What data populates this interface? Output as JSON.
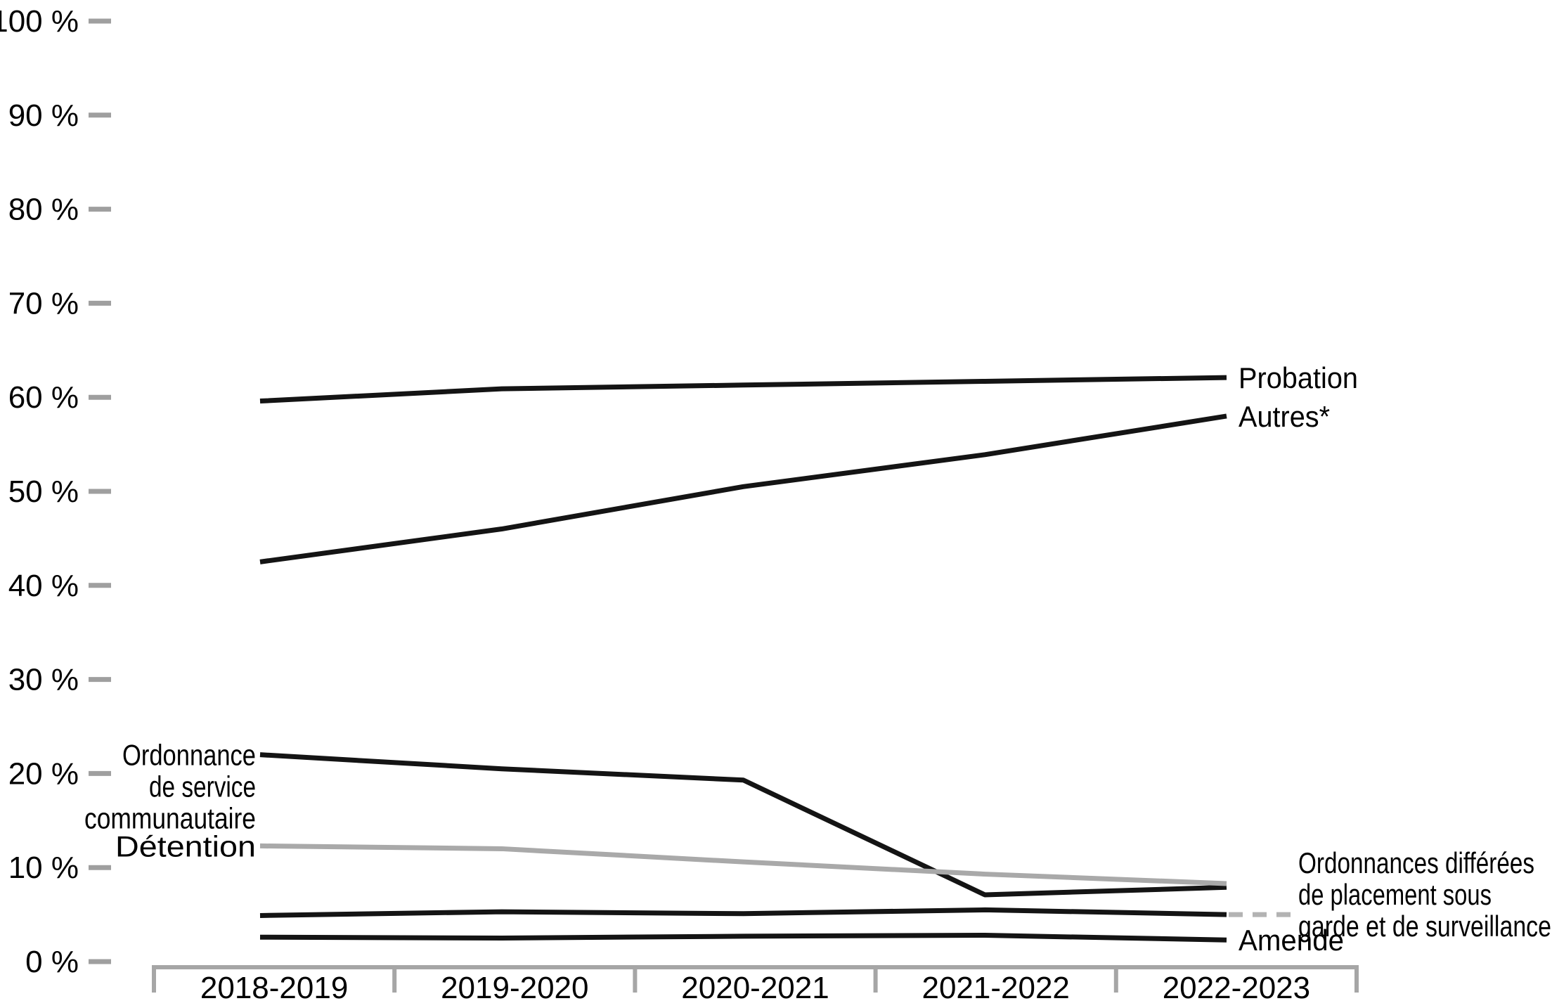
{
  "colors": {
    "line_black": "#141414",
    "line_gray": "#a9a9a9",
    "axis_gray": "#a6a6a6",
    "tick_gray": "#9f9f9f",
    "leader_dash_gray": "#b3b3b3",
    "text": "#000000"
  },
  "y_axis": {
    "tick_labels": [
      "100 %",
      "90 %",
      "80 %",
      "70 %",
      "60 %",
      "50 %",
      "40 %",
      "30 %",
      "20 %",
      "10 %",
      "0 %"
    ],
    "tick_values": [
      100,
      90,
      80,
      70,
      60,
      50,
      40,
      30,
      20,
      10,
      0
    ]
  },
  "chart_data": {
    "type": "line",
    "title": "",
    "xlabel": "",
    "ylabel": "",
    "ylim": [
      0,
      100
    ],
    "ytick_step": 10,
    "grid": false,
    "legend_position": "direct-line-labels",
    "categories": [
      "2018-2019",
      "2019-2020",
      "2020-2021",
      "2021-2022",
      "2022-2023"
    ],
    "series": [
      {
        "name": "Probation",
        "label_lines": [
          "Probation"
        ],
        "color": "#141414",
        "style": "solid",
        "values": [
          59.6,
          60.9,
          61.3,
          61.7,
          62.1
        ]
      },
      {
        "name": "Autres*",
        "label_lines": [
          "Autres*"
        ],
        "color": "#141414",
        "style": "solid",
        "values": [
          42.5,
          46.0,
          50.5,
          53.9,
          58.0
        ]
      },
      {
        "name": "Ordonnance de service communautaire",
        "label_lines": [
          "Ordonnance",
          "de service",
          "communautaire"
        ],
        "color": "#141414",
        "style": "solid",
        "values": [
          22.0,
          20.5,
          19.3,
          7.1,
          7.9
        ]
      },
      {
        "name": "Détention",
        "label_lines": [
          "Détention"
        ],
        "color": "#a9a9a9",
        "style": "solid",
        "values": [
          12.3,
          12.0,
          10.6,
          9.3,
          8.3
        ]
      },
      {
        "name": "Ordonnances différées de placement sous garde et de surveillance",
        "label_lines": [
          "Ordonnances différées",
          "de placement sous",
          "garde et de surveillance"
        ],
        "color": "#141414",
        "style": "solid",
        "leader": "dashed",
        "values": [
          4.9,
          5.3,
          5.1,
          5.5,
          5.0
        ]
      },
      {
        "name": "Amende",
        "label_lines": [
          "Amende"
        ],
        "color": "#141414",
        "style": "solid",
        "values": [
          2.6,
          2.5,
          2.7,
          2.8,
          2.3
        ]
      }
    ]
  }
}
